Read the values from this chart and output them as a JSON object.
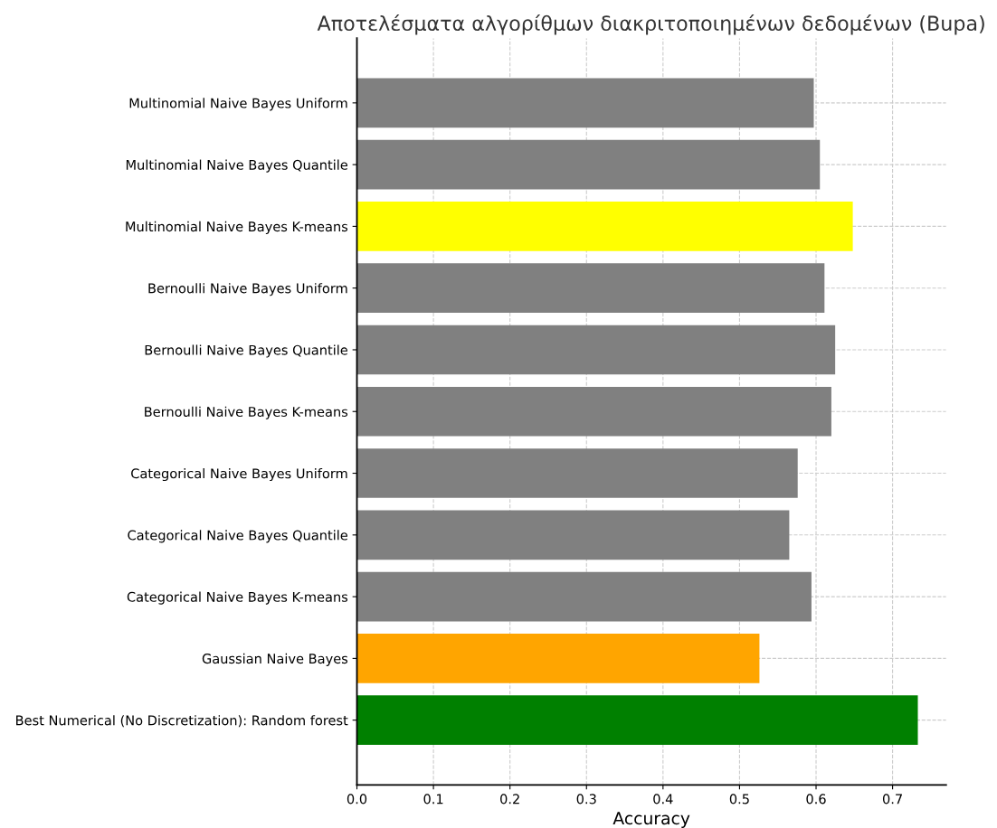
{
  "chart_data": {
    "type": "bar",
    "orientation": "horizontal",
    "title": "Αποτελέσματα αλγορίθμων διακριτοποιημένων δεδομένων (Bupa)",
    "xlabel": "Accuracy",
    "categories": [
      "Multinomial Naive Bayes Uniform",
      "Multinomial Naive Bayes Quantile",
      "Multinomial Naive Bayes K-means",
      "Bernoulli Naive Bayes Uniform",
      "Bernoulli Naive Bayes Quantile",
      "Bernoulli Naive Bayes K-means",
      "Categorical Naive Bayes Uniform",
      "Categorical Naive Bayes Quantile",
      "Categorical Naive Bayes K-means",
      "Gaussian Naive Bayes",
      "Best Numerical (No Discretization): Random forest"
    ],
    "values": [
      0.597,
      0.605,
      0.648,
      0.611,
      0.625,
      0.62,
      0.576,
      0.565,
      0.594,
      0.526,
      0.733
    ],
    "colors": [
      "#808080",
      "#808080",
      "#ffff00",
      "#808080",
      "#808080",
      "#808080",
      "#808080",
      "#808080",
      "#808080",
      "#ffa500",
      "#008000"
    ],
    "xlim": [
      0,
      0.77
    ],
    "xticks": [
      {
        "value": 0,
        "label": "0.0"
      },
      0.1,
      0.2,
      0.3,
      0.4,
      0.5,
      0.6,
      0.7
    ],
    "grid": true
  }
}
